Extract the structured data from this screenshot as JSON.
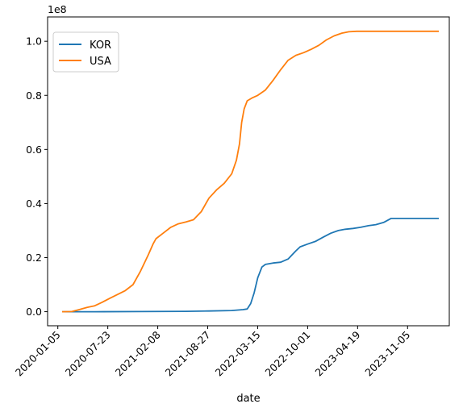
{
  "chart_data": {
    "type": "line",
    "title": "",
    "xlabel": "date",
    "ylabel": "",
    "y_offset_label": "1e8",
    "grid": false,
    "legend_position": "top-left",
    "x_tick_labels": [
      "2020-01-05",
      "2020-07-23",
      "2021-02-08",
      "2021-08-27",
      "2022-03-15",
      "2022-10-01",
      "2023-04-19",
      "2023-11-05"
    ],
    "y_tick_labels": [
      "0.0",
      "0.2",
      "0.4",
      "0.6",
      "0.8",
      "1.0"
    ],
    "y_ticks": [
      0,
      0.2,
      0.4,
      0.6,
      0.8,
      1.0
    ],
    "xlim": [
      "2019-11-25",
      "2024-04-20"
    ],
    "ylim": [
      -0.052,
      1.09
    ],
    "series": [
      {
        "name": "KOR",
        "color": "#1f77b4",
        "x": [
          "2020-01-22",
          "2020-06-01",
          "2020-12-01",
          "2021-06-01",
          "2021-09-01",
          "2021-12-01",
          "2022-01-15",
          "2022-02-01",
          "2022-02-15",
          "2022-03-01",
          "2022-03-15",
          "2022-04-01",
          "2022-04-15",
          "2022-05-15",
          "2022-06-15",
          "2022-07-15",
          "2022-08-15",
          "2022-09-01",
          "2022-10-01",
          "2022-11-01",
          "2022-12-01",
          "2023-01-01",
          "2023-02-01",
          "2023-03-01",
          "2023-04-01",
          "2023-05-01",
          "2023-06-01",
          "2023-07-01",
          "2023-08-01",
          "2023-08-31",
          "2024-03-09"
        ],
        "values": [
          0,
          0,
          0.0004,
          0.0015,
          0.0025,
          0.0045,
          0.0075,
          0.01,
          0.03,
          0.07,
          0.125,
          0.165,
          0.175,
          0.18,
          0.183,
          0.195,
          0.225,
          0.24,
          0.25,
          0.26,
          0.275,
          0.29,
          0.3,
          0.305,
          0.308,
          0.312,
          0.318,
          0.322,
          0.33,
          0.345,
          0.345
        ]
      },
      {
        "name": "USA",
        "color": "#ff7f0e",
        "x": [
          "2020-01-22",
          "2020-03-01",
          "2020-04-01",
          "2020-05-01",
          "2020-06-01",
          "2020-07-01",
          "2020-08-01",
          "2020-09-01",
          "2020-10-01",
          "2020-11-01",
          "2020-12-01",
          "2021-01-01",
          "2021-01-20",
          "2021-02-01",
          "2021-03-01",
          "2021-04-01",
          "2021-05-01",
          "2021-06-01",
          "2021-07-01",
          "2021-08-01",
          "2021-09-01",
          "2021-10-01",
          "2021-11-01",
          "2021-12-01",
          "2021-12-20",
          "2022-01-01",
          "2022-01-10",
          "2022-01-20",
          "2022-02-01",
          "2022-02-20",
          "2022-03-15",
          "2022-04-15",
          "2022-05-15",
          "2022-06-15",
          "2022-07-15",
          "2022-08-15",
          "2022-09-15",
          "2022-10-15",
          "2022-11-15",
          "2022-12-15",
          "2023-01-15",
          "2023-02-15",
          "2023-03-15",
          "2023-04-15",
          "2023-05-15",
          "2024-03-09"
        ],
        "values": [
          0,
          0.0005,
          0.008,
          0.016,
          0.022,
          0.035,
          0.05,
          0.064,
          0.078,
          0.1,
          0.15,
          0.21,
          0.25,
          0.27,
          0.29,
          0.312,
          0.325,
          0.332,
          0.34,
          0.37,
          0.42,
          0.45,
          0.475,
          0.51,
          0.56,
          0.62,
          0.7,
          0.75,
          0.78,
          0.79,
          0.8,
          0.82,
          0.855,
          0.895,
          0.93,
          0.948,
          0.958,
          0.97,
          0.985,
          1.005,
          1.02,
          1.03,
          1.035,
          1.037,
          1.037,
          1.037
        ]
      }
    ]
  }
}
